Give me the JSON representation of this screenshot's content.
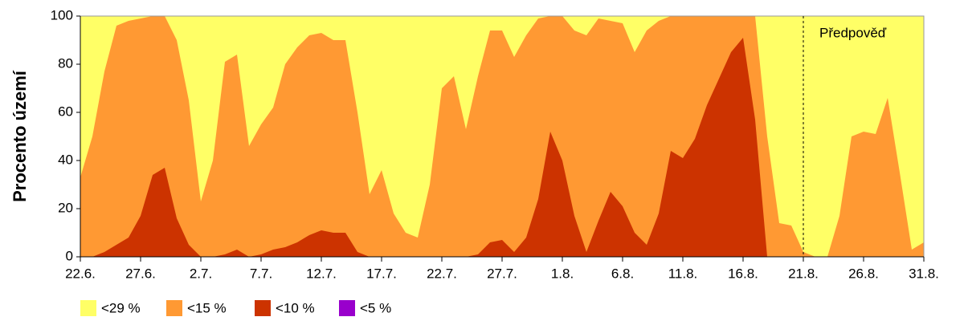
{
  "chart_data": {
    "type": "area",
    "y_label": "Procento území",
    "categories": [
      "22.6.",
      null,
      null,
      null,
      null,
      "27.6.",
      null,
      null,
      null,
      null,
      "2.7.",
      null,
      null,
      null,
      null,
      "7.7.",
      null,
      null,
      null,
      null,
      "12.7.",
      null,
      null,
      null,
      null,
      "17.7.",
      null,
      null,
      null,
      null,
      "22.7.",
      null,
      null,
      null,
      null,
      "27.7.",
      null,
      null,
      null,
      null,
      "1.8.",
      null,
      null,
      null,
      null,
      "6.8.",
      null,
      null,
      null,
      null,
      "11.8.",
      null,
      null,
      null,
      null,
      "16.8.",
      null,
      null,
      null,
      null,
      "21.8.",
      null,
      null,
      null,
      null,
      "26.8.",
      null,
      null,
      null,
      null,
      "31.8."
    ],
    "series": [
      {
        "name": "<29 %",
        "color": "#ffff66",
        "values": [
          100,
          100,
          100,
          100,
          100,
          100,
          100,
          100,
          100,
          100,
          100,
          100,
          100,
          100,
          100,
          100,
          100,
          100,
          100,
          100,
          100,
          100,
          100,
          100,
          100,
          100,
          100,
          100,
          100,
          100,
          100,
          100,
          100,
          100,
          100,
          100,
          100,
          100,
          100,
          100,
          100,
          100,
          100,
          100,
          100,
          100,
          100,
          100,
          100,
          100,
          100,
          100,
          100,
          100,
          100,
          100,
          100,
          100,
          100,
          100,
          100,
          100,
          100,
          100,
          100,
          100,
          100,
          100,
          100,
          100,
          100
        ]
      },
      {
        "name": "<15 %",
        "color": "#ff9933",
        "values": [
          33,
          50,
          77,
          96,
          98,
          99,
          100,
          100,
          90,
          65,
          23,
          40,
          81,
          84,
          46,
          55,
          62,
          80,
          87,
          92,
          93,
          90,
          90,
          60,
          26,
          36,
          18,
          10,
          8,
          30,
          70,
          75,
          53,
          75,
          94,
          94,
          83,
          92,
          99,
          100,
          100,
          94,
          92,
          99,
          98,
          97,
          85,
          94,
          98,
          100,
          100,
          100,
          100,
          100,
          100,
          100,
          100,
          50,
          14,
          13,
          2,
          0,
          0,
          17,
          50,
          52,
          51,
          66,
          35,
          3,
          6
        ]
      },
      {
        "name": "<10 %",
        "color": "#cc3300",
        "values": [
          0,
          0,
          2,
          5,
          8,
          17,
          34,
          37,
          16,
          5,
          0,
          0,
          1,
          3,
          0,
          1,
          3,
          4,
          6,
          9,
          11,
          10,
          10,
          2,
          0,
          0,
          0,
          0,
          0,
          0,
          0,
          0,
          0,
          1,
          6,
          7,
          2,
          8,
          24,
          52,
          40,
          17,
          2,
          15,
          27,
          21,
          10,
          5,
          18,
          44,
          41,
          49,
          63,
          74,
          85,
          91,
          57,
          0,
          0,
          0,
          0,
          0,
          0,
          0,
          0,
          0,
          0,
          0,
          0,
          0,
          0
        ]
      },
      {
        "name": "<5 %",
        "color": "#9900cc",
        "values": [
          0,
          0,
          0,
          0,
          0,
          0,
          0,
          0,
          0,
          0,
          0,
          0,
          0,
          0,
          0,
          0,
          0,
          0,
          0,
          0,
          0,
          0,
          0,
          0,
          0,
          0,
          0,
          0,
          0,
          0,
          0,
          0,
          0,
          0,
          0,
          0,
          0,
          0,
          0,
          0,
          0,
          0,
          0,
          0,
          0,
          0,
          0,
          0,
          0,
          0,
          0,
          0,
          0,
          0,
          0,
          0,
          0,
          0,
          0,
          0,
          0,
          0,
          0,
          0,
          0,
          0,
          0,
          0,
          0,
          0,
          0
        ]
      }
    ],
    "ylim": [
      0,
      100
    ],
    "yticks": [
      0,
      20,
      40,
      60,
      80,
      100
    ],
    "annotation": {
      "text": "Předpověď",
      "x": "21.8."
    }
  }
}
